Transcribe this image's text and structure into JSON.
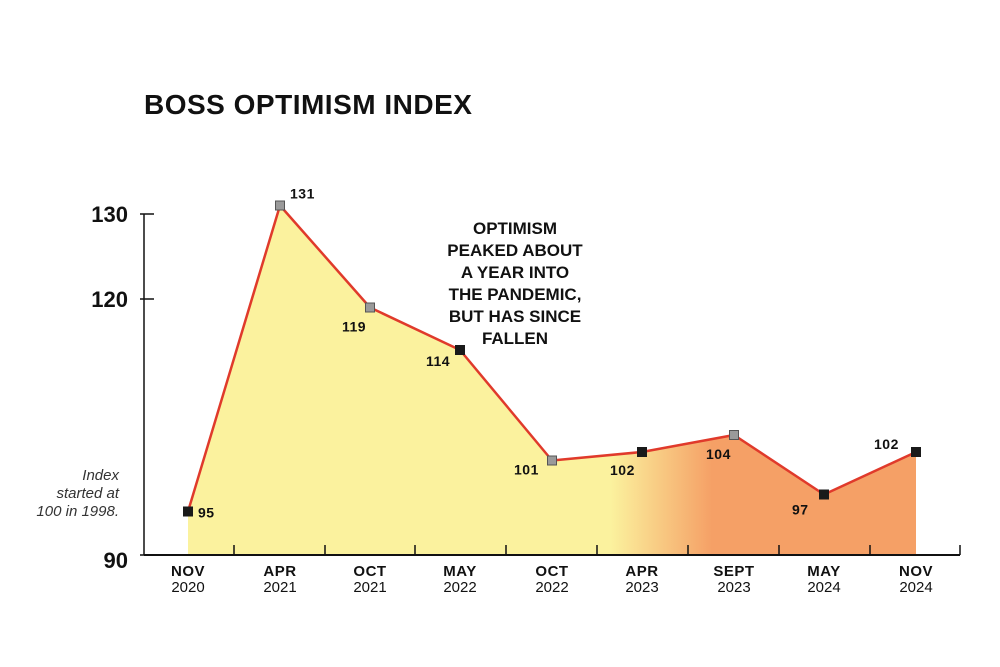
{
  "chart_data": {
    "type": "area",
    "title": "BOSS OPTIMISM INDEX",
    "categories": [
      {
        "month": "NOV",
        "year": "2020"
      },
      {
        "month": "APR",
        "year": "2021"
      },
      {
        "month": "OCT",
        "year": "2021"
      },
      {
        "month": "MAY",
        "year": "2022"
      },
      {
        "month": "OCT",
        "year": "2022"
      },
      {
        "month": "APR",
        "year": "2023"
      },
      {
        "month": "SEPT",
        "year": "2023"
      },
      {
        "month": "MAY",
        "year": "2024"
      },
      {
        "month": "NOV",
        "year": "2024"
      }
    ],
    "values": [
      95,
      131,
      119,
      114,
      101,
      102,
      104,
      97,
      102
    ],
    "data_labels": [
      "95",
      "131",
      "119",
      "114",
      "101",
      "102",
      "104",
      "97",
      "102"
    ],
    "yticks": [
      "90",
      "120",
      "130"
    ],
    "ytick_values": [
      90,
      120,
      130
    ],
    "ylim": [
      90,
      131
    ],
    "annotation": [
      "OPTIMISM",
      "PEAKED ABOUT",
      "A YEAR INTO",
      "THE PANDEMIC,",
      "BUT HAS SINCE",
      "FALLEN"
    ],
    "note": [
      "Index",
      "started at",
      "100 in 1998."
    ],
    "colors": {
      "line": "#e03a2b",
      "fill_yellow": "#fbf29e",
      "fill_orange": "#f5a066",
      "marker_dark": "#1a1a1a",
      "marker_light": "#9a9a9a",
      "axis": "#111111"
    },
    "marker_styles": [
      "dark",
      "light",
      "light",
      "dark",
      "light",
      "dark",
      "light",
      "dark",
      "dark"
    ]
  }
}
